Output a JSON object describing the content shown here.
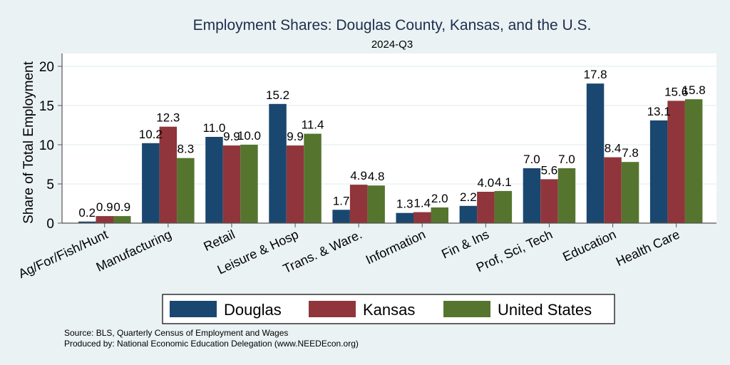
{
  "chart_data": {
    "type": "bar",
    "title": "Employment Shares: Douglas County, Kansas, and the U.S.",
    "subtitle": "2024-Q3",
    "xlabel": "",
    "ylabel": "Share of Total Employment",
    "ylim": [
      0,
      21.7
    ],
    "yticks": [
      0,
      5,
      10,
      15,
      20
    ],
    "grid": true,
    "legend_position": "bottom",
    "categories": [
      "Ag/For/Fish/Hunt",
      "Manufacturing",
      "Retail",
      "Leisure & Hosp",
      "Trans. & Ware.",
      "Information",
      "Fin & Ins",
      "Prof, Sci, Tech",
      "Education",
      "Health Care"
    ],
    "series": [
      {
        "name": "Douglas",
        "color": "#1a476f",
        "values": [
          0.2,
          10.2,
          11.0,
          15.2,
          1.7,
          1.3,
          2.2,
          7.0,
          17.8,
          13.1
        ]
      },
      {
        "name": "Kansas",
        "color": "#90353b",
        "values": [
          0.9,
          12.3,
          9.9,
          9.9,
          4.9,
          1.4,
          4.0,
          5.6,
          8.4,
          15.6
        ]
      },
      {
        "name": "United States",
        "color": "#55752f",
        "values": [
          0.9,
          8.3,
          10.0,
          11.4,
          4.8,
          2.0,
          4.1,
          7.0,
          7.8,
          15.8
        ]
      }
    ],
    "notes": [
      "Source: BLS, Quarterly Census of Employment and Wages",
      "Produced by: National Economic Education Delegation (www.NEEDEcon.org)"
    ]
  }
}
